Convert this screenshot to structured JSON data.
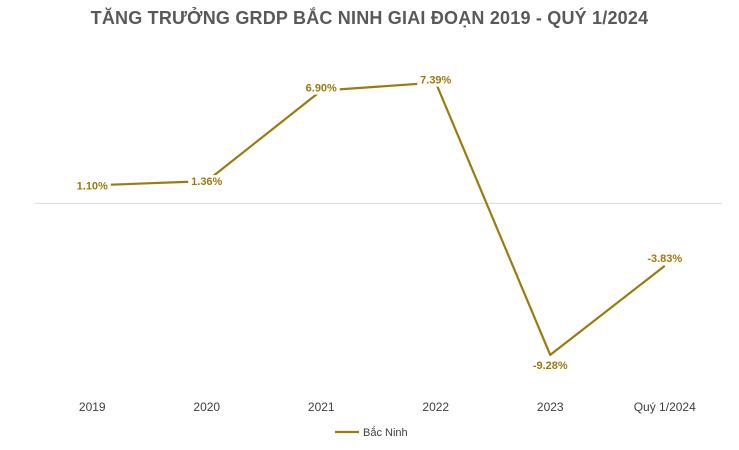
{
  "chart_data": {
    "type": "line",
    "title": "TĂNG TRƯỞNG GRDP BẮC NINH GIAI ĐOẠN 2019 - QUÝ 1/2024",
    "categories": [
      "2019",
      "2020",
      "2021",
      "2022",
      "2023",
      "Quý 1/2024"
    ],
    "series": [
      {
        "name": "Bắc Ninh",
        "values": [
          1.1,
          1.36,
          6.9,
          7.39,
          -9.28,
          -3.83
        ],
        "labels": [
          "1.10%",
          "1.36%",
          "6.90%",
          "7.39%",
          "-9.28%",
          "-3.83%"
        ],
        "color": "#9C7A0E"
      }
    ],
    "ylim": [
      -11,
      10
    ],
    "value_axis_hidden": true,
    "zero_line": true,
    "legend_position": "bottom"
  }
}
